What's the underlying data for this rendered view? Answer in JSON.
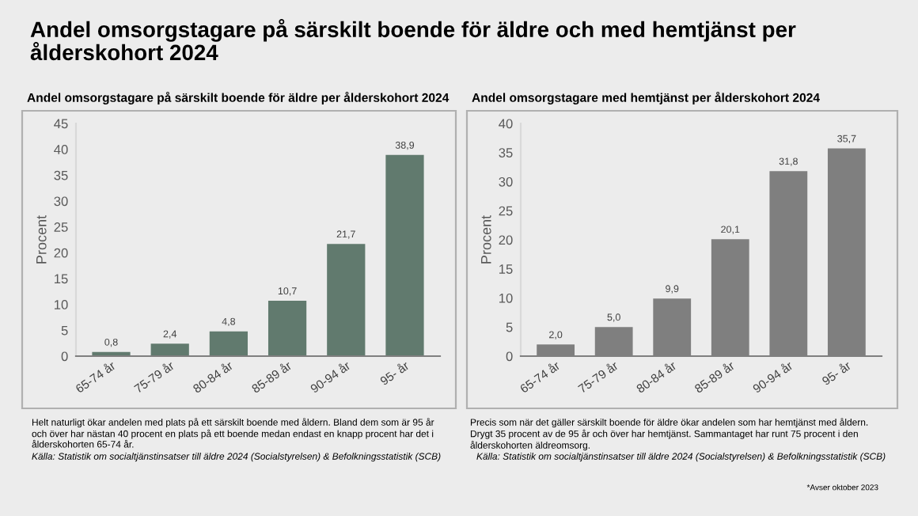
{
  "chart_data": [
    {
      "type": "bar",
      "title": "Andel omsorgstagare på särskilt boende för äldre per ålderskohort 2024",
      "ylabel": "Procent",
      "categories": [
        "65-74 år",
        "75-79 år",
        "80-84 år",
        "85-89 år",
        "90-94 år",
        "95- år"
      ],
      "values": [
        0.8,
        2.4,
        4.8,
        10.7,
        21.7,
        38.9
      ],
      "value_labels": [
        "0,8",
        "2,4",
        "4,8",
        "10,7",
        "21,7",
        "38,9"
      ],
      "color": "#617a6e",
      "ylim": [
        0,
        45
      ],
      "yticks": [
        0,
        5,
        10,
        15,
        20,
        25,
        30,
        35,
        40,
        45
      ],
      "grid": false,
      "legend": false,
      "annotations": [
        "Andel omsorgstagare på särskilt boende för äldre och med hemtjänst per\nålderskohort 2024",
        "Helt naturligt ökar andelen med plats på ett särskilt boende med åldern. Bland dem som är 95 år\noch över har nästan 40 procent en plats på ett boende medan endast en knapp procent har det i\nålderskohorten 65-74 år.",
        "Källa: Statistik om socialtjänstinsatser till äldre 2024 (Socialstyrelsen) & Befolkningsstatistik (SCB)"
      ]
    },
    {
      "type": "bar",
      "title": "Andel omsorgstagare med hemtjänst per ålderskohort 2024",
      "ylabel": "Procent",
      "categories": [
        "65-74 år",
        "75-79 år",
        "80-84 år",
        "85-89 år",
        "90-94 år",
        "95- år"
      ],
      "values": [
        2.0,
        5.0,
        9.9,
        20.1,
        31.8,
        35.7
      ],
      "value_labels": [
        "2,0",
        "5,0",
        "9,9",
        "20,1",
        "31,8",
        "35,7"
      ],
      "color": "#7f7f7f",
      "ylim": [
        0,
        40
      ],
      "yticks": [
        0,
        5,
        10,
        15,
        20,
        25,
        30,
        35,
        40
      ],
      "grid": false,
      "legend": false,
      "annotations": [
        "Precis som när det gäller särskilt boende för äldre ökar andelen som har hemtjänst med åldern.\nDrygt 35 procent av de 95 år och över har hemtjänst. Sammantaget har runt 75 procent i den\nålderskohorten äldreomsorg.",
        "Källa: Statistik om socialtjänstinsatser till äldre 2024 (Socialstyrelsen) & Befolkningsstatistik (SCB)",
        "*Avser oktober 2023"
      ]
    }
  ]
}
